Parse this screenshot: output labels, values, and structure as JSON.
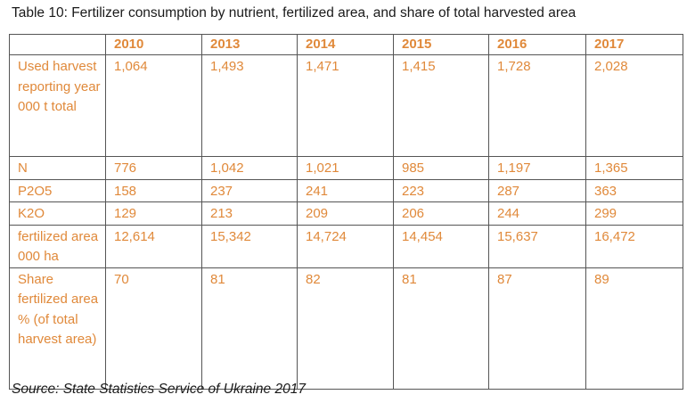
{
  "title": "Table 10: Fertilizer consumption by nutrient, fertilized area, and share of total harvested area",
  "table": {
    "columns": [
      "",
      "2010",
      "2013",
      "2014",
      "2015",
      "2016",
      "2017"
    ],
    "rows": [
      {
        "label": "Used harvest reporting year 000 t total",
        "values": [
          "1,064",
          "1,493",
          "1,471",
          "1,415",
          "1,728",
          "2,028"
        ]
      },
      {
        "label": "N",
        "values": [
          "776",
          "1,042",
          "1,021",
          "985",
          "1,197",
          "1,365"
        ]
      },
      {
        "label": "P2O5",
        "values": [
          "158",
          "237",
          "241",
          "223",
          "287",
          "363"
        ]
      },
      {
        "label": "K2O",
        "values": [
          "129",
          "213",
          "209",
          "206",
          "244",
          "299"
        ]
      },
      {
        "label": "fertilized area 000 ha",
        "values": [
          "12,614",
          "15,342",
          "14,724",
          "14,454",
          "15,637",
          "16,472"
        ]
      },
      {
        "label": "Share fertilized area % (of total harvest area)",
        "values": [
          "70",
          "81",
          "82",
          "81",
          "87",
          "89"
        ]
      }
    ]
  },
  "source": "Source: State Statistics Service of Ukraine 2017",
  "colors": {
    "table_text": "#e0893a",
    "border": "#555555",
    "title_text": "#1a1a1a"
  }
}
